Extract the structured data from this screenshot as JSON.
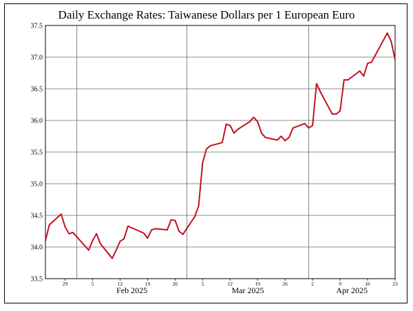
{
  "chart_data": {
    "type": "line",
    "title": "Daily Exchange Rates: Taiwanese Dollars per 1 European Euro",
    "xlabel": "",
    "ylabel": "",
    "ylim": [
      33.5,
      37.5
    ],
    "xlim": [
      "2025-01-24",
      "2025-04-23"
    ],
    "y_ticks": [
      33.5,
      34.0,
      34.5,
      35.0,
      35.5,
      36.0,
      36.5,
      37.0,
      37.5
    ],
    "x_minor_ticks": [
      {
        "date": "2025-01-29",
        "label": "29"
      },
      {
        "date": "2025-02-05",
        "label": "5"
      },
      {
        "date": "2025-02-12",
        "label": "12"
      },
      {
        "date": "2025-02-19",
        "label": "19"
      },
      {
        "date": "2025-02-26",
        "label": "26"
      },
      {
        "date": "2025-03-05",
        "label": "5"
      },
      {
        "date": "2025-03-12",
        "label": "12"
      },
      {
        "date": "2025-03-19",
        "label": "19"
      },
      {
        "date": "2025-03-26",
        "label": "26"
      },
      {
        "date": "2025-04-02",
        "label": "2"
      },
      {
        "date": "2025-04-09",
        "label": "9"
      },
      {
        "date": "2025-04-16",
        "label": "16"
      },
      {
        "date": "2025-04-23",
        "label": "23"
      }
    ],
    "x_month_labels": [
      {
        "date": "2025-02-01",
        "label": "Feb 2025"
      },
      {
        "date": "2025-03-01",
        "label": "Mar 2025"
      },
      {
        "date": "2025-04-01",
        "label": "Apr 2025"
      }
    ],
    "x_gridlines": [
      "2025-02-01",
      "2025-03-01",
      "2025-04-01"
    ],
    "grid": true,
    "series_color": "#c0101c",
    "series": [
      {
        "x": [
          "2025-01-24",
          "2025-01-25",
          "2025-01-28",
          "2025-01-29",
          "2025-01-30",
          "2025-01-31",
          "2025-02-04",
          "2025-02-05",
          "2025-02-06",
          "2025-02-07",
          "2025-02-10",
          "2025-02-11",
          "2025-02-12",
          "2025-02-13",
          "2025-02-14",
          "2025-02-18",
          "2025-02-19",
          "2025-02-20",
          "2025-02-21",
          "2025-02-24",
          "2025-02-25",
          "2025-02-26",
          "2025-02-27",
          "2025-02-28",
          "2025-03-03",
          "2025-03-04",
          "2025-03-05",
          "2025-03-06",
          "2025-03-07",
          "2025-03-10",
          "2025-03-11",
          "2025-03-12",
          "2025-03-13",
          "2025-03-14",
          "2025-03-17",
          "2025-03-18",
          "2025-03-19",
          "2025-03-20",
          "2025-03-21",
          "2025-03-24",
          "2025-03-25",
          "2025-03-26",
          "2025-03-27",
          "2025-03-28",
          "2025-03-31",
          "2025-04-01",
          "2025-04-02",
          "2025-04-03",
          "2025-04-04",
          "2025-04-07",
          "2025-04-08",
          "2025-04-09",
          "2025-04-10",
          "2025-04-11",
          "2025-04-14",
          "2025-04-15",
          "2025-04-16",
          "2025-04-17",
          "2025-04-21",
          "2025-04-22",
          "2025-04-23"
        ],
        "values": [
          34.1,
          34.35,
          34.52,
          34.32,
          34.21,
          34.23,
          33.95,
          34.1,
          34.21,
          34.05,
          33.82,
          33.95,
          34.09,
          34.13,
          34.33,
          34.22,
          34.14,
          34.27,
          34.29,
          34.27,
          34.43,
          34.42,
          34.25,
          34.2,
          34.48,
          34.65,
          35.33,
          35.55,
          35.6,
          35.65,
          35.94,
          35.92,
          35.8,
          35.86,
          35.98,
          36.05,
          35.98,
          35.8,
          35.73,
          35.69,
          35.75,
          35.68,
          35.73,
          35.88,
          35.95,
          35.88,
          35.92,
          36.58,
          36.45,
          36.1,
          36.1,
          36.15,
          36.64,
          36.64,
          36.78,
          36.7,
          36.9,
          36.92,
          37.38,
          37.25,
          36.96
        ]
      }
    ]
  }
}
